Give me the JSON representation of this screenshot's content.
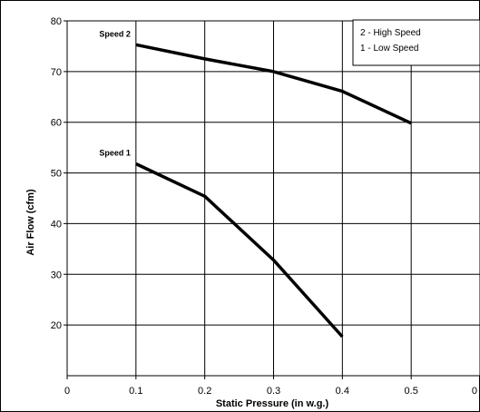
{
  "chart_data": {
    "type": "line",
    "xlabel": "Static Pressure (in w.g.)",
    "ylabel": "Air Flow (cfm)",
    "xlim": [
      0,
      0.6
    ],
    "ylim": [
      10,
      80
    ],
    "x_ticks": [
      "0",
      "0.1",
      "0.2",
      "0.3",
      "0.4",
      "0.5",
      "0"
    ],
    "y_ticks": [
      "20",
      "30",
      "40",
      "50",
      "60",
      "70",
      "80"
    ],
    "grid": true,
    "legend": {
      "placement": "top-right",
      "entries": [
        "2 - High Speed",
        "1 - Low Speed"
      ]
    },
    "series": [
      {
        "name": "Speed 2",
        "x": [
          0.1,
          0.2,
          0.3,
          0.4,
          0.5
        ],
        "y": [
          75.3,
          72.5,
          70,
          66.1,
          59.8
        ]
      },
      {
        "name": "Speed 1",
        "x": [
          0.1,
          0.2,
          0.3,
          0.4
        ],
        "y": [
          51.8,
          45.4,
          32.8,
          17.7
        ]
      }
    ]
  }
}
